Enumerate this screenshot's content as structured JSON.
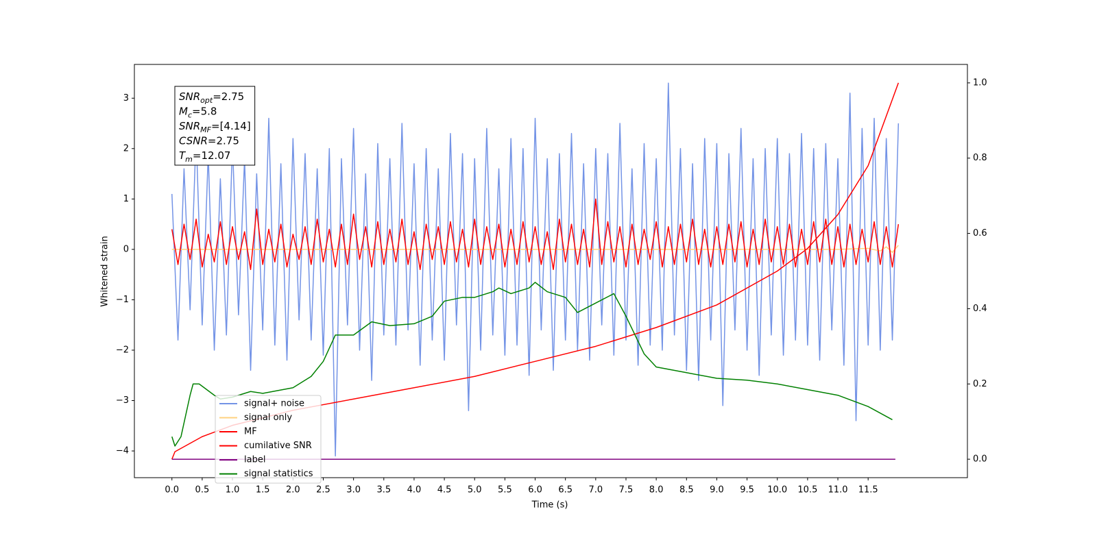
{
  "chart_data": {
    "type": "line",
    "xlabel": "Time (s)",
    "ylabel": "Whitened strain",
    "xlim": [
      -0.62,
      13.14
    ],
    "ylim": [
      -4.53,
      3.67
    ],
    "y2lim": [
      -0.049,
      1.049
    ],
    "xticks": [
      {
        "value": 0,
        "label": "0.0"
      },
      0.5,
      {
        "value": 1,
        "label": "1.0"
      },
      1.5,
      {
        "value": 2,
        "label": "2.0"
      },
      2.5,
      {
        "value": 3,
        "label": "3.0"
      },
      3.5,
      {
        "value": 4,
        "label": "4.0"
      },
      4.5,
      {
        "value": 5,
        "label": "5.0"
      },
      5.5,
      {
        "value": 6,
        "label": "6.0"
      },
      6.5,
      {
        "value": 7,
        "label": "7.0"
      },
      7.5,
      {
        "value": 8,
        "label": "8.0"
      },
      8.5,
      {
        "value": 9,
        "label": "9.0"
      },
      9.5,
      {
        "value": 10,
        "label": "10.0"
      },
      10.5,
      {
        "value": 11,
        "label": "11.0"
      },
      11.5
    ],
    "yticks": [
      {
        "value": -4,
        "label": "−4"
      },
      {
        "value": -3,
        "label": "−3"
      },
      {
        "value": -2,
        "label": "−2"
      },
      {
        "value": -1,
        "label": "−1"
      },
      0,
      1,
      2,
      3
    ],
    "y2ticks": [
      {
        "value": 0,
        "label": "0.0"
      },
      0.2,
      0.4,
      0.6,
      0.8,
      {
        "value": 1,
        "label": "1.0"
      }
    ],
    "grid": false,
    "legend_loc": "lower left",
    "annotation": [
      {
        "symbol": "SNR",
        "subscript": "opt",
        "text": "=2.75"
      },
      {
        "symbol": "M",
        "subscript": "c",
        "text": "=5.8"
      },
      {
        "symbol": "SNR",
        "subscript": "MF",
        "text": "=[4.14]"
      },
      {
        "symbol": "CSNR",
        "subscript": "",
        "text": "=2.75"
      },
      {
        "symbol": "T",
        "subscript": "m",
        "text": "=12.07"
      }
    ],
    "x": [
      0,
      0.1,
      0.2,
      0.3,
      0.4,
      0.5,
      0.6,
      0.7,
      0.8,
      0.9,
      1,
      1.1,
      1.2,
      1.3,
      1.4,
      1.5,
      1.6,
      1.7,
      1.8,
      1.9,
      2,
      2.1,
      2.2,
      2.3,
      2.4,
      2.5,
      2.6,
      2.7,
      2.8,
      2.9,
      3,
      3.1,
      3.2,
      3.3,
      3.4,
      3.5,
      3.6,
      3.7,
      3.8,
      3.9,
      4,
      4.1,
      4.2,
      4.3,
      4.4,
      4.5,
      4.6,
      4.7,
      4.8,
      4.9,
      5,
      5.1,
      5.2,
      5.3,
      5.4,
      5.5,
      5.6,
      5.7,
      5.8,
      5.9,
      6,
      6.1,
      6.2,
      6.3,
      6.4,
      6.5,
      6.6,
      6.7,
      6.8,
      6.9,
      7,
      7.1,
      7.2,
      7.3,
      7.4,
      7.5,
      7.6,
      7.7,
      7.8,
      7.9,
      8,
      8.1,
      8.2,
      8.3,
      8.4,
      8.5,
      8.6,
      8.7,
      8.8,
      8.9,
      9,
      9.1,
      9.2,
      9.3,
      9.4,
      9.5,
      9.6,
      9.7,
      9.8,
      9.9,
      10,
      10.1,
      10.2,
      10.3,
      10.4,
      10.5,
      10.6,
      10.7,
      10.8,
      10.9,
      11,
      11.1,
      11.2,
      11.3,
      11.4,
      11.5,
      11.6,
      11.7,
      11.8,
      11.9,
      12
    ],
    "series": [
      {
        "name": "signal+ noise",
        "color": "#7393e6",
        "values": [
          1.1,
          -1.8,
          1.6,
          -1.2,
          2.3,
          -1.5,
          1.9,
          -2.0,
          1.4,
          -1.7,
          2.1,
          -1.3,
          1.8,
          -2.4,
          1.5,
          -1.6,
          2.6,
          -1.9,
          1.7,
          -2.2,
          2.2,
          -1.4,
          1.9,
          -1.8,
          1.6,
          -2.1,
          2.0,
          -4.1,
          1.8,
          -1.5,
          2.4,
          -2.0,
          1.5,
          -2.6,
          2.1,
          -1.7,
          1.8,
          -1.9,
          2.5,
          -1.6,
          1.7,
          -2.3,
          2.0,
          -1.8,
          1.6,
          -2.2,
          2.3,
          -1.5,
          1.9,
          -3.2,
          1.8,
          -2.0,
          2.4,
          -1.7,
          1.6,
          -2.1,
          2.2,
          -1.9,
          2.0,
          -2.5,
          2.6,
          -1.6,
          1.8,
          -2.4,
          1.9,
          -1.8,
          2.3,
          -2.0,
          1.7,
          -2.2,
          2.0,
          -1.5,
          1.9,
          -2.1,
          2.5,
          -1.8,
          1.6,
          -2.3,
          2.1,
          -1.9,
          1.8,
          -2.0,
          3.3,
          -1.7,
          2.0,
          -2.4,
          1.7,
          -2.6,
          2.2,
          -1.8,
          2.1,
          -3.1,
          1.9,
          -1.6,
          2.4,
          -2.0,
          1.8,
          -2.5,
          2.0,
          -1.7,
          2.2,
          -2.1,
          1.9,
          -1.8,
          2.3,
          -1.9,
          2.0,
          -2.2,
          2.1,
          -1.6,
          1.8,
          -2.3,
          3.1,
          -3.4,
          2.4,
          -1.9,
          2.6,
          -2.0,
          2.2,
          -1.8,
          2.5
        ]
      },
      {
        "name": "signal only",
        "color": "#ffd27f",
        "x": [
          0,
          11,
          11.5,
          11.7,
          11.8,
          11.9,
          12
        ],
        "values": [
          0,
          0,
          0.02,
          -0.03,
          0.05,
          -0.06,
          0.08
        ]
      },
      {
        "name": "MF",
        "color": "#ff0000",
        "values": [
          0.4,
          -0.3,
          0.5,
          -0.2,
          0.6,
          -0.35,
          0.3,
          -0.25,
          0.55,
          -0.3,
          0.45,
          -0.2,
          0.35,
          -0.4,
          0.8,
          -0.3,
          0.4,
          -0.25,
          0.5,
          -0.35,
          0.3,
          -0.2,
          0.45,
          -0.3,
          0.6,
          -0.25,
          0.4,
          -0.35,
          0.5,
          -0.3,
          0.7,
          -0.2,
          0.45,
          -0.35,
          0.55,
          -0.3,
          0.4,
          -0.25,
          0.6,
          -0.3,
          0.35,
          -0.4,
          0.5,
          -0.2,
          0.45,
          -0.3,
          0.55,
          -0.25,
          0.4,
          -0.35,
          0.6,
          -0.3,
          0.45,
          -0.2,
          0.5,
          -0.35,
          0.4,
          -0.3,
          0.55,
          -0.25,
          0.45,
          -0.3,
          0.35,
          -0.4,
          0.6,
          -0.25,
          0.5,
          -0.3,
          0.4,
          -0.35,
          1.0,
          -0.3,
          0.55,
          -0.25,
          0.45,
          -0.35,
          0.5,
          -0.3,
          0.4,
          -0.2,
          0.55,
          -0.35,
          0.45,
          -0.3,
          0.5,
          -0.25,
          0.6,
          -0.3,
          0.4,
          -0.35,
          0.45,
          -0.3,
          0.5,
          -0.25,
          0.55,
          -0.35,
          0.4,
          -0.3,
          0.6,
          -0.25,
          0.45,
          -0.3,
          0.5,
          -0.35,
          0.4,
          -0.3,
          0.55,
          -0.25,
          0.6,
          -0.3,
          0.45,
          -0.35,
          0.5,
          -0.3,
          0.4,
          -0.25,
          0.55,
          -0.3,
          0.45,
          -0.35,
          0.5
        ]
      },
      {
        "name": "cumilative SNR",
        "color": "#ff0000",
        "axis": "y2",
        "x": [
          0,
          0.05,
          0.5,
          1,
          2,
          3,
          4,
          5,
          6,
          7,
          8,
          9,
          10,
          10.5,
          11,
          11.5,
          12
        ],
        "values": [
          0,
          0.02,
          0.06,
          0.09,
          0.13,
          0.16,
          0.19,
          0.22,
          0.26,
          0.3,
          0.35,
          0.41,
          0.5,
          0.56,
          0.65,
          0.78,
          1.0
        ]
      },
      {
        "name": "label",
        "color": "#800080",
        "axis": "y2",
        "x": [
          0,
          11.95
        ],
        "values": [
          0,
          0
        ]
      },
      {
        "name": "signal statistics",
        "color": "#008000",
        "axis": "y2",
        "x": [
          0,
          0.05,
          0.15,
          0.3,
          0.35,
          0.45,
          0.7,
          0.8,
          1.0,
          1.3,
          1.5,
          2.0,
          2.3,
          2.5,
          2.7,
          3.0,
          3.3,
          3.6,
          4.0,
          4.3,
          4.5,
          4.8,
          5.0,
          5.3,
          5.4,
          5.6,
          5.9,
          6.0,
          6.2,
          6.5,
          6.7,
          7.0,
          7.3,
          7.5,
          7.8,
          8.0,
          8.5,
          9.0,
          9.5,
          10.0,
          10.5,
          11.0,
          11.5,
          11.9
        ],
        "values": [
          0.06,
          0.035,
          0.06,
          0.17,
          0.2,
          0.2,
          0.17,
          0.16,
          0.165,
          0.18,
          0.175,
          0.19,
          0.22,
          0.26,
          0.33,
          0.33,
          0.365,
          0.355,
          0.36,
          0.38,
          0.42,
          0.43,
          0.43,
          0.445,
          0.455,
          0.44,
          0.455,
          0.47,
          0.445,
          0.43,
          0.39,
          0.415,
          0.44,
          0.38,
          0.28,
          0.245,
          0.23,
          0.215,
          0.21,
          0.2,
          0.185,
          0.17,
          0.14,
          0.105
        ]
      }
    ]
  }
}
